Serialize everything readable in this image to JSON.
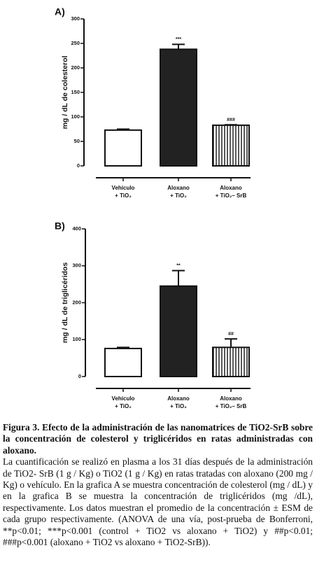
{
  "chart_data": [
    {
      "type": "bar",
      "panel": "A)",
      "y_label": "mg / dL de colesterol",
      "categories": [
        [
          "Vehículo",
          "+ TiO₂"
        ],
        [
          "Aloxano",
          "+ TiO₂"
        ],
        [
          "Aloxano",
          "+ TiO₂– SrB"
        ]
      ],
      "values": [
        73,
        238,
        83
      ],
      "errors": [
        2,
        10,
        1
      ],
      "annotations": [
        null,
        "***",
        "###"
      ],
      "bar_fills": [
        "#ffffff",
        "#222222",
        "hatch"
      ],
      "ylim": [
        0,
        300
      ],
      "yticks": [
        0,
        50,
        100,
        150,
        200,
        250,
        300
      ]
    },
    {
      "type": "bar",
      "panel": "B)",
      "y_label": "mg / dL de triglicéridos",
      "categories": [
        [
          "Vehículo",
          "+ TiO₂"
        ],
        [
          "Aloxano",
          "+ TiO₂"
        ],
        [
          "Aloxano",
          "+ TiO₂– SrB"
        ]
      ],
      "values": [
        76,
        245,
        79
      ],
      "errors": [
        3,
        42,
        23
      ],
      "annotations": [
        null,
        "**",
        "##"
      ],
      "bar_fills": [
        "#ffffff",
        "#222222",
        "hatch"
      ],
      "ylim": [
        0,
        400
      ],
      "yticks": [
        0,
        100,
        200,
        300,
        400
      ]
    }
  ],
  "caption": {
    "title": "Figura 3. Efecto de la administración de las nanomatrices de TiO2-SrB sobre la concentración de colesterol y triglicéridos en ratas administradas con aloxano.",
    "body": "La cuantificación se realizó en plasma a los 31 días después de la administración de TiO2- SrB (1 g / Kg) o TiO2 (1 g / Kg) en ratas tratadas con aloxano (200 mg / Kg) o vehículo. En la grafica A se muestra concentración de colesterol (mg / dL) y en la grafica B se muestra la concentración de triglicéridos (mg /dL), respectivamente. Los datos muestran el promedio de la concentración ± ESM de cada grupo respectivamente. (ANOVA de una vía, post-prueba de Bonferroni, **p<0.01; ***p<0.001 (control + TiO2 vs aloxano + TiO2) y ##p<0.01; ###p<0.001 (aloxano + TiO2 vs aloxano + TiO2-SrB))."
  }
}
